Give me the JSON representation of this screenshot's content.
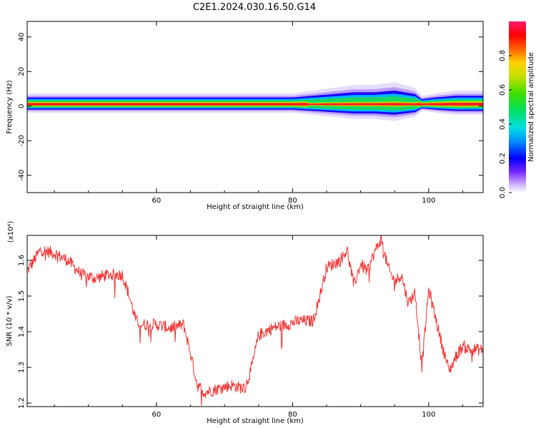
{
  "title": "C2E1.2024.030.16.50.G14",
  "colors": {
    "signal_line": "#ee3333",
    "background": "#ffffff",
    "axis": "#000000"
  },
  "chart_data": [
    {
      "type": "heatmap",
      "title": "",
      "xlabel": "Height of straight line (km)",
      "ylabel": "Frequency (Hz)",
      "xlim": [
        41,
        108
      ],
      "ylim": [
        -50,
        49
      ],
      "x_ticks": [
        60,
        80,
        100
      ],
      "y_ticks": [
        -40,
        -20,
        0,
        20,
        40
      ],
      "x_tick_labels": [
        "60",
        "80",
        "100"
      ],
      "y_tick_labels": [
        "-40",
        "-20",
        "0",
        "20",
        "40"
      ],
      "colorbar": {
        "label": "Normalized spectral amplitude",
        "range": [
          0,
          1
        ],
        "ticks": [
          "0.0",
          "0.2",
          "0.4",
          "0.6",
          "0.8"
        ],
        "tick_values": [
          0.0,
          0.2,
          0.4,
          0.6,
          0.8
        ]
      },
      "band_center_freq_hz": 1,
      "band_halfwidth_hz": [
        [
          41,
          4
        ],
        [
          50,
          4
        ],
        [
          60,
          4
        ],
        [
          70,
          4
        ],
        [
          80,
          4
        ],
        [
          83,
          5
        ],
        [
          86,
          6
        ],
        [
          89,
          7
        ],
        [
          92,
          7
        ],
        [
          95,
          8
        ],
        [
          98,
          6
        ],
        [
          99,
          3
        ],
        [
          101,
          4
        ],
        [
          104,
          5
        ],
        [
          108,
          5
        ]
      ],
      "grid": false
    },
    {
      "type": "line",
      "title": "",
      "xlabel": "Height of straight line (km)",
      "ylabel": "SNR (10 * v/v)",
      "y_multiplier": "(x10⁴)",
      "xlim": [
        41,
        108
      ],
      "ylim": [
        1.19,
        1.67
      ],
      "x_ticks": [
        60,
        80,
        100
      ],
      "y_ticks": [
        1.2,
        1.3,
        1.4,
        1.5,
        1.6
      ],
      "x_tick_labels": [
        "60",
        "80",
        "100"
      ],
      "y_tick_labels": [
        "1.2",
        "1.3",
        "1.4",
        "1.5",
        "1.6"
      ],
      "grid": false,
      "series": [
        {
          "x": [
            41,
            43,
            45,
            47,
            49,
            51,
            53,
            55,
            56,
            57,
            58,
            60,
            62,
            64,
            65,
            66,
            67,
            69,
            71,
            73,
            74,
            75,
            77,
            79,
            81,
            83,
            84,
            85,
            87,
            88,
            89,
            90,
            91,
            92,
            93,
            94,
            95,
            96,
            97,
            98,
            99,
            100,
            101,
            102,
            103,
            104,
            105,
            106,
            108
          ],
          "values": [
            1.57,
            1.63,
            1.62,
            1.6,
            1.56,
            1.55,
            1.56,
            1.56,
            1.5,
            1.43,
            1.42,
            1.42,
            1.41,
            1.42,
            1.34,
            1.25,
            1.23,
            1.24,
            1.25,
            1.24,
            1.3,
            1.39,
            1.41,
            1.42,
            1.43,
            1.43,
            1.5,
            1.58,
            1.6,
            1.63,
            1.53,
            1.59,
            1.57,
            1.62,
            1.66,
            1.58,
            1.54,
            1.56,
            1.48,
            1.51,
            1.3,
            1.52,
            1.44,
            1.36,
            1.29,
            1.33,
            1.36,
            1.35,
            1.35
          ]
        }
      ]
    }
  ]
}
